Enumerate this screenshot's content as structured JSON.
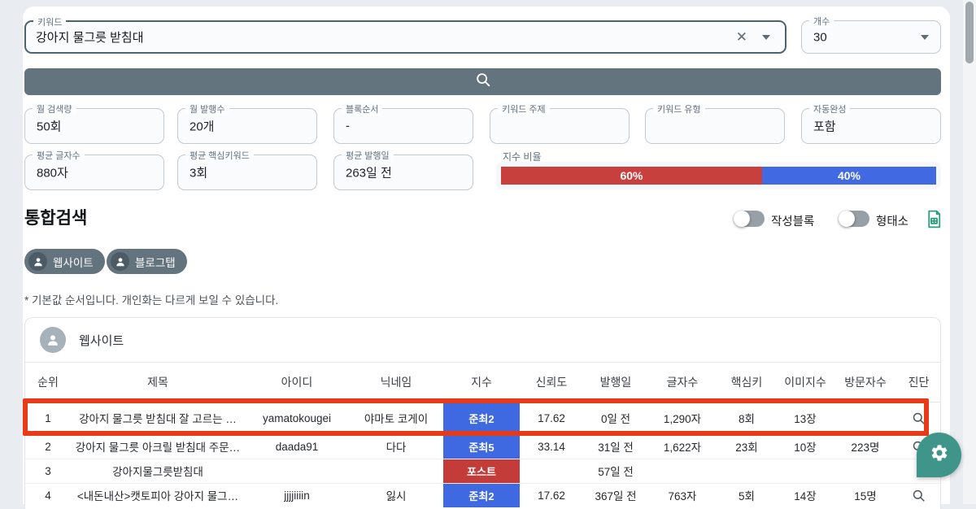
{
  "search": {
    "keyword_label": "키워드",
    "keyword_value": "강아지 물그릇 받침대",
    "count_label": "개수",
    "count_value": "30"
  },
  "stats": {
    "fields": [
      {
        "label": "월 검색량",
        "value": "50회"
      },
      {
        "label": "월 발행수",
        "value": "20개"
      },
      {
        "label": "블록순서",
        "value": "-"
      },
      {
        "label": "키워드 주제",
        "value": ""
      },
      {
        "label": "키워드 유형",
        "value": ""
      },
      {
        "label": "자동완성",
        "value": "포함"
      },
      {
        "label": "평균 글자수",
        "value": "880자"
      },
      {
        "label": "평균 핵심키워드",
        "value": "3회"
      },
      {
        "label": "평균 발행일",
        "value": "263일 전"
      }
    ],
    "ratio": {
      "label": "지수 비율",
      "red_pct": 60,
      "blue_pct": 40,
      "red_label": "60%",
      "blue_label": "40%"
    }
  },
  "section": {
    "title": "통합검색",
    "toggle1_label": "작성블록",
    "toggle2_label": "형태소",
    "pill1_label": "웹사이트",
    "pill2_label": "블로그탭",
    "note": "* 기본값 순서입니다. 개인화는 다르게 보일 수 있습니다."
  },
  "table": {
    "card_title": "웹사이트",
    "columns": [
      "순위",
      "제목",
      "아이디",
      "닉네임",
      "지수",
      "신뢰도",
      "발행일",
      "글자수",
      "핵심키",
      "이미지수",
      "방문자수",
      "진단"
    ],
    "rows": [
      {
        "rank": "1",
        "title": "강아지 물그릇 받침대 잘 고르는 …",
        "id": "yamatokougei",
        "nick": "야마토 코게이",
        "badge": "준최2",
        "badge_type": "blue",
        "trust": "17.62",
        "date": "0일 전",
        "chars": "1,290자",
        "keys": "8회",
        "images": "13장",
        "visitors": "",
        "diag": true,
        "highlight": true
      },
      {
        "rank": "2",
        "title": "강아지 물그릇 아크릴 받침대 주문…",
        "id": "daada91",
        "nick": "다다",
        "badge": "준최5",
        "badge_type": "blue",
        "trust": "33.14",
        "date": "31일 전",
        "chars": "1,622자",
        "keys": "23회",
        "images": "10장",
        "visitors": "223명",
        "diag": true,
        "highlight": false
      },
      {
        "rank": "3",
        "title": "강아지물그릇받침대",
        "id": "",
        "nick": "",
        "badge": "포스트",
        "badge_type": "red",
        "trust": "",
        "date": "57일 전",
        "chars": "",
        "keys": "",
        "images": "",
        "visitors": "",
        "diag": false,
        "highlight": false
      },
      {
        "rank": "4",
        "title": "<내돈내산>캣토피아 강아지 물그…",
        "id": "jjjjiiiin",
        "nick": "잃시",
        "badge": "준최2",
        "badge_type": "blue",
        "trust": "17.62",
        "date": "367일 전",
        "chars": "763자",
        "keys": "5회",
        "images": "14장",
        "visitors": "15명",
        "diag": true,
        "highlight": false
      }
    ]
  },
  "colors": {
    "accent_slate": "#64747e",
    "badge_blue": "#3f69e1",
    "badge_red": "#c43c3a",
    "ratio_red": "#c8403e",
    "ratio_blue": "#4169e1",
    "highlight_red": "#e83a16",
    "fab_teal": "#3f958a",
    "excel_green": "#2a9d7c"
  }
}
